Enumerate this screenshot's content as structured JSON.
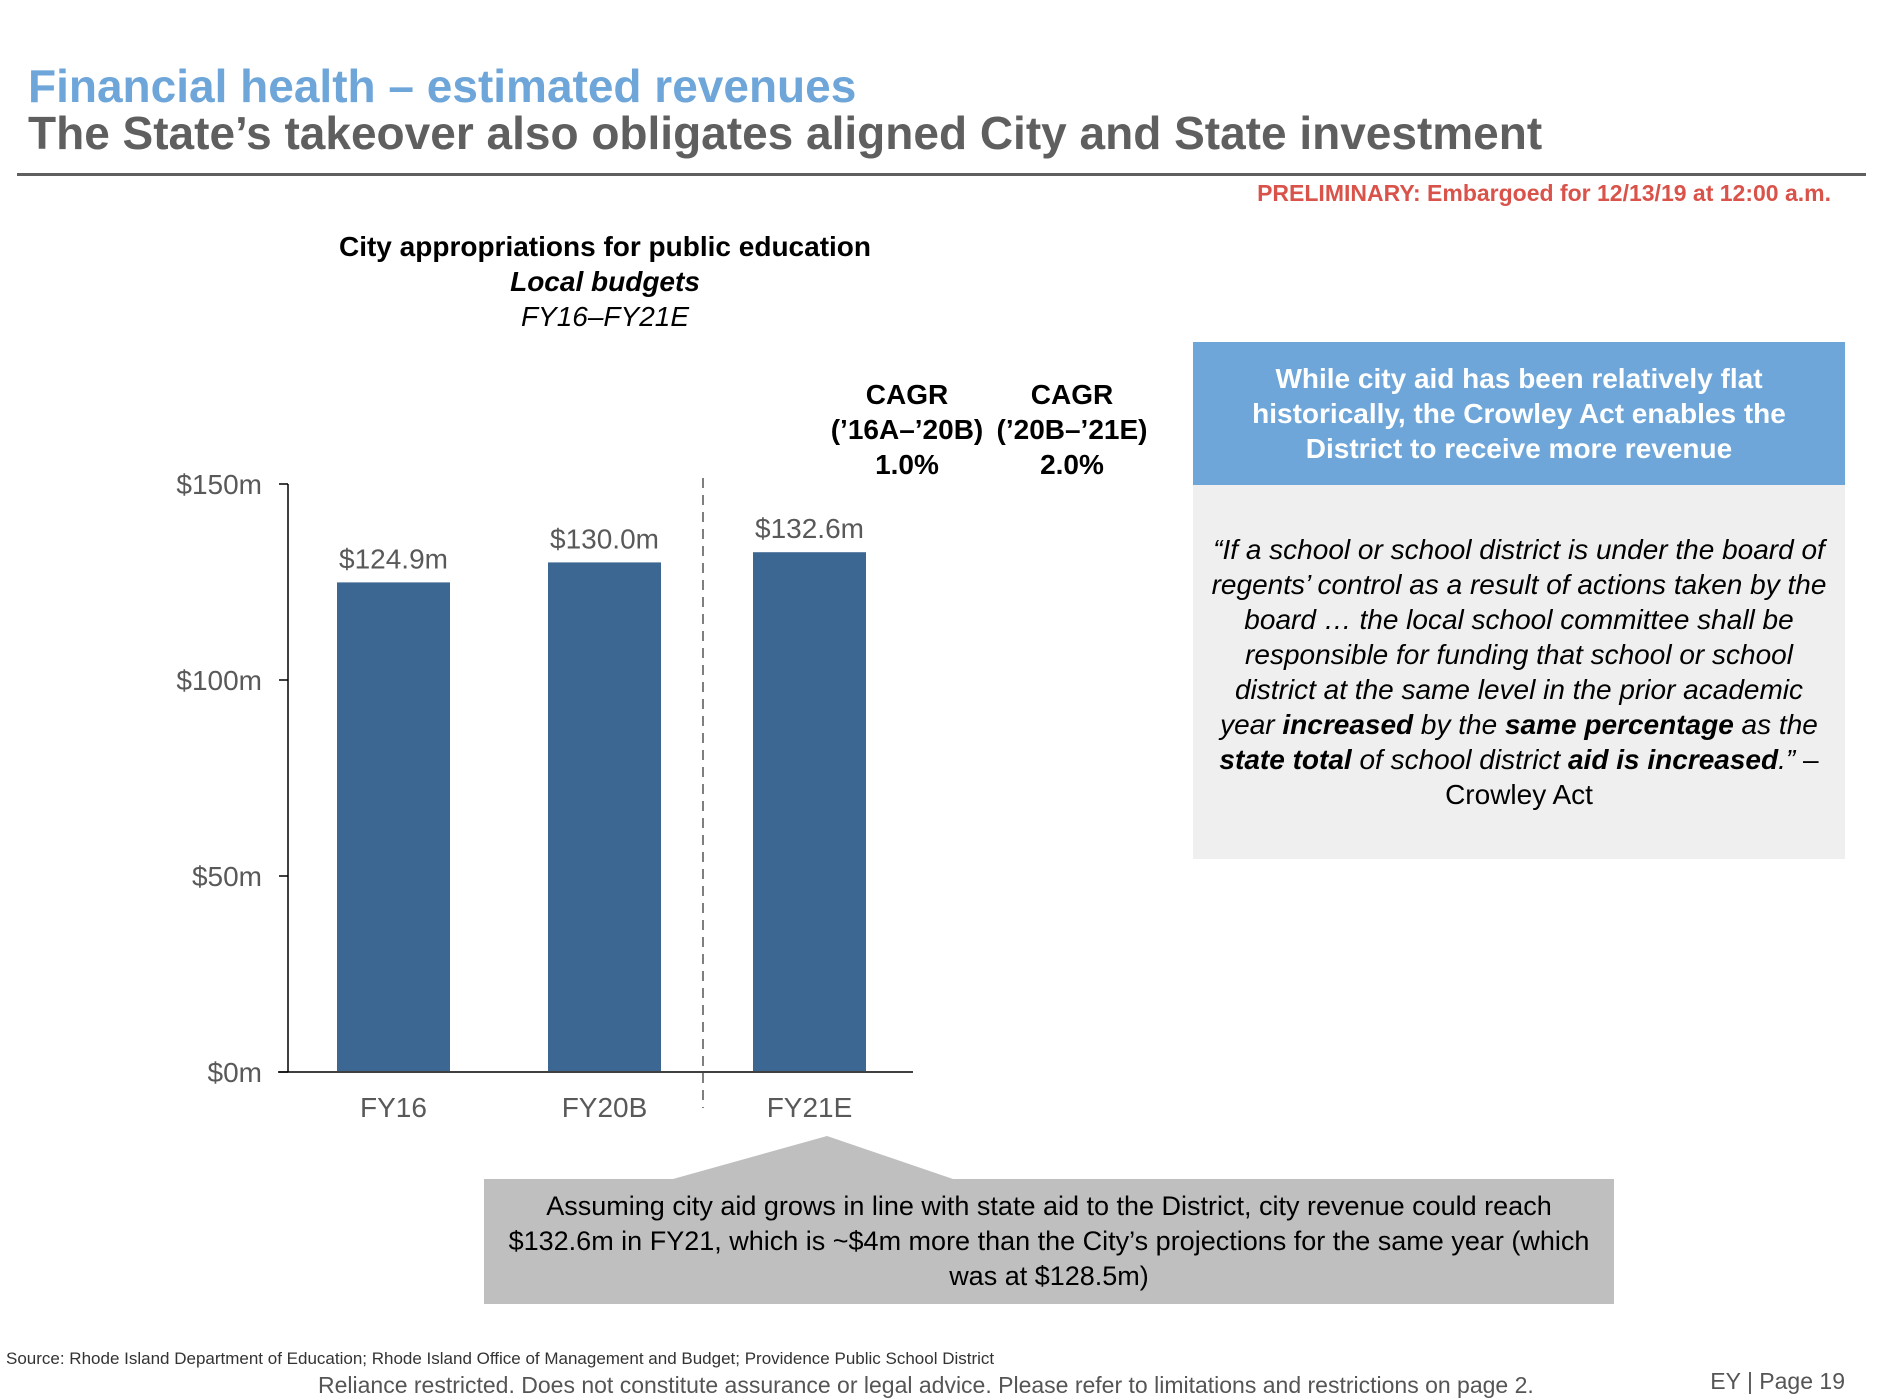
{
  "header": {
    "title": "Financial health – estimated revenues",
    "subtitle": "The State’s takeover also obligates aligned City and State investment",
    "preliminary_notice": "PRELIMINARY: Embargoed for 12/13/19 at 12:00 a.m."
  },
  "colors": {
    "title_blue": "#6EA6D9",
    "subtitle_gray": "#5F5F5F",
    "bar_blue": "#3D6793",
    "notice_red": "#D9534A",
    "callout_gray": "#BFBFBF",
    "box_gray": "#EFEFEF"
  },
  "chart_data": {
    "type": "bar",
    "title": "City appropriations for public education",
    "subtitle": "Local budgets",
    "period": "FY16–FY21E",
    "categories": [
      "FY16",
      "FY20B",
      "FY21E"
    ],
    "values": [
      124.9,
      130.0,
      132.6
    ],
    "value_labels": [
      "$124.9m",
      "$130.0m",
      "$132.6m"
    ],
    "unit": "$m",
    "xlabel": "",
    "ylabel": "",
    "ylim": [
      0,
      150
    ],
    "yticks": [
      0,
      50,
      100,
      150
    ],
    "ytick_labels": [
      "$0m",
      "$50m",
      "$100m",
      "$150m"
    ],
    "grid": false,
    "divider_after_category": "FY20B",
    "annotations": [
      {
        "lines": [
          "CAGR",
          "(’16A–’20B)",
          "1.0%"
        ]
      },
      {
        "lines": [
          "CAGR",
          "(’20B–’21E)",
          "2.0%"
        ]
      }
    ]
  },
  "side_box": {
    "heading": "While city aid has been relatively flat historically, the Crowley Act enables the District to receive more revenue",
    "quote_parts": [
      {
        "text": "“If a school or school district is under the board of regents’ control as a result of actions taken by the board … the local school committee shall be responsible for funding that school or school district at the same level in the prior academic year ",
        "bold": false
      },
      {
        "text": "increased",
        "bold": true
      },
      {
        "text": " by the ",
        "bold": false
      },
      {
        "text": "same percentage",
        "bold": true
      },
      {
        "text": " as the ",
        "bold": false
      },
      {
        "text": "state total",
        "bold": true
      },
      {
        "text": " of school district ",
        "bold": false
      },
      {
        "text": "aid is increased",
        "bold": true
      },
      {
        "text": ".”",
        "bold": false
      }
    ],
    "attribution": " – Crowley Act"
  },
  "callout": {
    "text": "Assuming city aid grows in line with state aid to the District, city revenue could reach $132.6m in FY21, which is ~$4m more than the City’s projections for the same year (which was at $128.5m)"
  },
  "footer": {
    "source": "Source: Rhode Island Department of Education; Rhode Island Office of Management and Budget; Providence Public School District",
    "disclaimer": "Reliance restricted. Does not constitute assurance or legal advice. Please refer to limitations and restrictions on page 2.",
    "page": "EY | Page 19"
  }
}
